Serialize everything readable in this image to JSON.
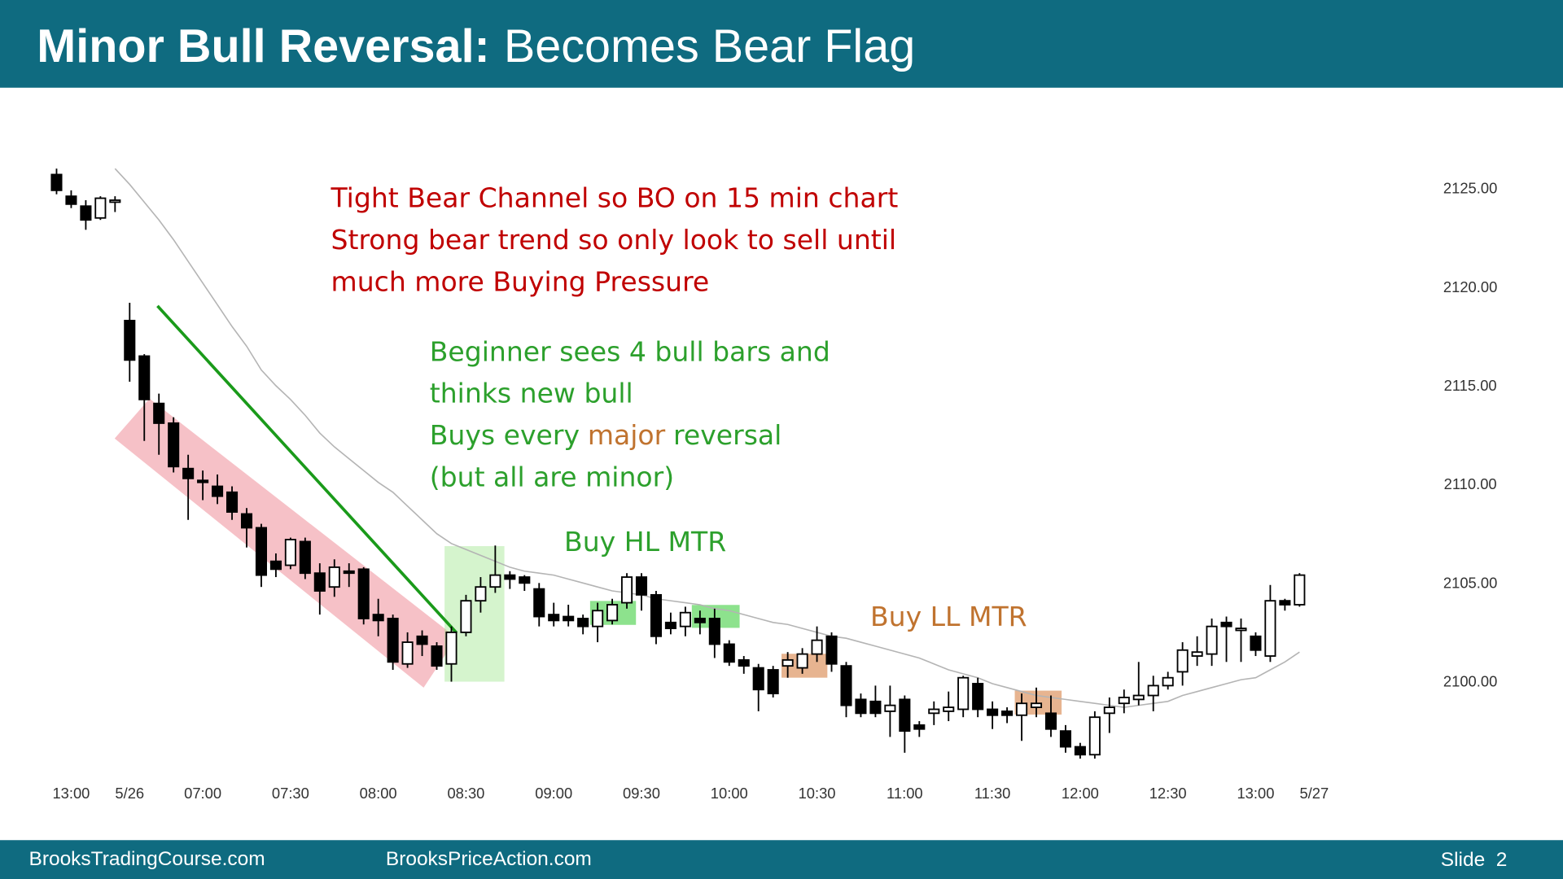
{
  "header": {
    "title_bold": "Minor Bull Reversal:",
    "title_rest": "Becomes Bear Flag"
  },
  "footer": {
    "left": "BrooksTradingCourse.com",
    "center": "BrooksPriceAction.com",
    "right": "Slide  2"
  },
  "chart_data": {
    "type": "candlestick",
    "up_color": "#ffffff",
    "down_color": "#000000",
    "categories": [
      null,
      "13:00",
      null,
      null,
      null,
      "5/26",
      null,
      null,
      null,
      null,
      "07:00",
      null,
      null,
      null,
      null,
      null,
      "07:30",
      null,
      null,
      null,
      null,
      null,
      "08:00",
      null,
      null,
      null,
      null,
      null,
      "08:30",
      null,
      null,
      null,
      null,
      null,
      "09:00",
      null,
      null,
      null,
      null,
      null,
      "09:30",
      null,
      null,
      null,
      null,
      null,
      "10:00",
      null,
      null,
      null,
      null,
      null,
      "10:30",
      null,
      null,
      null,
      null,
      null,
      "11:00",
      null,
      null,
      null,
      null,
      null,
      "11:30",
      null,
      null,
      null,
      null,
      null,
      "12:00",
      null,
      null,
      null,
      null,
      null,
      "12:30",
      null,
      null,
      null,
      null,
      null,
      "13:00",
      null,
      null,
      null,
      "5/27"
    ],
    "open": [
      2125.7,
      2124.6,
      2124.1,
      2123.5,
      2124.3,
      2118.3,
      2116.5,
      2114.1,
      2113.1,
      2110.8,
      2110.2,
      2109.9,
      2109.6,
      2108.5,
      2107.8,
      2106.1,
      2105.9,
      2107.1,
      2105.5,
      2104.8,
      2105.6,
      2105.7,
      2103.4,
      2103.2,
      2100.9,
      2102.3,
      2101.8,
      2100.9,
      2102.5,
      2104.1,
      2104.8,
      2105.4,
      2105.3,
      2104.7,
      2103.4,
      2103.3,
      2103.2,
      2102.8,
      2103.1,
      2104.0,
      2105.3,
      2104.4,
      2103.0,
      2102.8,
      2103.2,
      2103.2,
      2101.9,
      2101.1,
      2100.7,
      2100.6,
      2100.8,
      2100.7,
      2101.4,
      2102.3,
      2100.8,
      2099.1,
      2099.0,
      2098.5,
      2099.1,
      2097.8,
      2098.4,
      2098.5,
      2098.6,
      2099.9,
      2098.6,
      2098.5,
      2098.3,
      2098.7,
      2098.4,
      2097.5,
      2096.7,
      2096.3,
      2098.4,
      2098.9,
      2099.1,
      2099.3,
      2099.8,
      2100.5,
      2101.3,
      2101.4,
      2103.0,
      2102.6,
      2102.3,
      2101.3,
      2104.1,
      2103.9,
      null
    ],
    "high": [
      2126.0,
      2124.9,
      2124.4,
      2124.6,
      2124.6,
      2119.2,
      2116.6,
      2114.6,
      2113.4,
      2111.5,
      2110.7,
      2110.5,
      2109.9,
      2108.8,
      2108.0,
      2106.5,
      2107.3,
      2107.3,
      2106.0,
      2106.2,
      2106.0,
      2105.8,
      2104.2,
      2103.4,
      2102.5,
      2102.6,
      2102.0,
      2102.8,
      2104.4,
      2105.3,
      2106.9,
      2105.6,
      2105.4,
      2105.0,
      2104.0,
      2103.9,
      2103.4,
      2104.0,
      2104.2,
      2105.5,
      2105.5,
      2104.6,
      2103.5,
      2103.8,
      2103.6,
      2103.7,
      2102.1,
      2101.3,
      2100.9,
      2100.8,
      2101.5,
      2101.7,
      2102.8,
      2102.5,
      2101.0,
      2099.4,
      2099.8,
      2099.8,
      2099.3,
      2098.0,
      2099.0,
      2099.5,
      2100.3,
      2100.2,
      2099.0,
      2098.7,
      2099.4,
      2099.7,
      2099.3,
      2097.8,
      2096.9,
      2098.5,
      2099.2,
      2099.6,
      2101.0,
      2100.3,
      2100.5,
      2102.0,
      2102.3,
      2103.2,
      2103.3,
      2103.2,
      2102.5,
      2104.9,
      2104.2,
      2105.5,
      null
    ],
    "low": [
      2124.7,
      2124.0,
      2122.9,
      2123.4,
      2123.8,
      2115.2,
      2112.2,
      2111.5,
      2110.6,
      2108.2,
      2109.2,
      2109.0,
      2108.2,
      2106.8,
      2104.8,
      2105.3,
      2105.7,
      2105.2,
      2103.4,
      2104.3,
      2104.8,
      2102.9,
      2102.3,
      2100.6,
      2100.7,
      2101.3,
      2100.6,
      2100.0,
      2102.3,
      2103.5,
      2104.5,
      2104.7,
      2104.6,
      2102.8,
      2102.8,
      2102.8,
      2102.4,
      2102.0,
      2102.9,
      2103.7,
      2103.6,
      2101.9,
      2102.4,
      2102.3,
      2102.4,
      2101.2,
      2100.8,
      2100.4,
      2098.5,
      2099.2,
      2100.2,
      2100.4,
      2101.0,
      2100.5,
      2098.2,
      2098.2,
      2098.2,
      2097.2,
      2096.4,
      2097.2,
      2097.8,
      2098.0,
      2098.2,
      2098.2,
      2097.6,
      2097.9,
      2097.0,
      2098.2,
      2097.2,
      2096.4,
      2096.1,
      2096.1,
      2097.4,
      2098.4,
      2098.8,
      2098.5,
      2099.6,
      2099.8,
      2100.8,
      2100.8,
      2101.0,
      2101.0,
      2101.3,
      2101.0,
      2103.6,
      2103.8,
      null
    ],
    "close": [
      2124.9,
      2124.2,
      2123.4,
      2124.5,
      2124.4,
      2116.3,
      2114.3,
      2113.1,
      2110.9,
      2110.3,
      2110.1,
      2109.4,
      2108.6,
      2107.8,
      2105.4,
      2105.7,
      2107.2,
      2105.5,
      2104.6,
      2105.8,
      2105.5,
      2103.2,
      2103.1,
      2101.0,
      2102.0,
      2101.9,
      2100.8,
      2102.5,
      2104.1,
      2104.8,
      2105.4,
      2105.2,
      2105.0,
      2103.3,
      2103.1,
      2103.1,
      2102.8,
      2103.6,
      2103.9,
      2105.3,
      2104.4,
      2102.3,
      2102.7,
      2103.5,
      2103.0,
      2101.9,
      2101.0,
      2100.8,
      2099.6,
      2099.4,
      2101.1,
      2101.4,
      2102.1,
      2100.9,
      2098.8,
      2098.4,
      2098.4,
      2098.8,
      2097.5,
      2097.6,
      2098.6,
      2098.7,
      2100.2,
      2098.6,
      2098.3,
      2098.3,
      2098.9,
      2098.9,
      2097.6,
      2096.7,
      2096.3,
      2098.2,
      2098.7,
      2099.2,
      2099.3,
      2099.8,
      2100.2,
      2101.6,
      2101.5,
      2102.8,
      2102.8,
      2102.7,
      2101.6,
      2104.1,
      2103.9,
      2105.4,
      null
    ],
    "moving_average": {
      "color": "#b4b4b4",
      "values": [
        null,
        null,
        null,
        null,
        2126.0,
        2125.2,
        2124.3,
        2123.4,
        2122.4,
        2121.3,
        2120.2,
        2119.1,
        2118.0,
        2117.0,
        2115.8,
        2115.0,
        2114.3,
        2113.5,
        2112.6,
        2111.9,
        2111.3,
        2110.7,
        2110.1,
        2109.6,
        2108.9,
        2108.2,
        2107.5,
        2107.0,
        2106.7,
        2106.4,
        2106.1,
        2105.8,
        2105.6,
        2105.5,
        2105.4,
        2105.2,
        2105.0,
        2104.8,
        2104.6,
        2104.5,
        2104.4,
        2104.2,
        2104.1,
        2104.0,
        2103.9,
        2103.7,
        2103.6,
        2103.4,
        2103.2,
        2103.0,
        2102.9,
        2102.7,
        2102.5,
        2102.3,
        2102.2,
        2102.0,
        2101.8,
        2101.6,
        2101.4,
        2101.2,
        2100.9,
        2100.6,
        2100.4,
        2100.2,
        2099.9,
        2099.7,
        2099.5,
        2099.3,
        2099.2,
        2099.1,
        2099.0,
        2098.9,
        2098.8,
        2098.7,
        2098.8,
        2098.9,
        2099.0,
        2099.3,
        2099.5,
        2099.7,
        2099.9,
        2100.1,
        2100.2,
        2100.6,
        2101.0,
        2101.5,
        null
      ]
    },
    "ylim": [
      2095.5,
      2126.5
    ],
    "yticks": [
      {
        "value": 2100,
        "label": "2100.00"
      },
      {
        "value": 2105,
        "label": "2105.00"
      },
      {
        "value": 2110,
        "label": "2110.00"
      },
      {
        "value": 2115,
        "label": "2115.00"
      },
      {
        "value": 2120,
        "label": "2120.00"
      },
      {
        "value": 2125,
        "label": "2125.00"
      }
    ],
    "grid": false,
    "annotations": [
      {
        "text": "Tight Bear Channel so BO on 15 min chart",
        "color": "#c00000"
      },
      {
        "text": "Strong bear trend so only look to sell until",
        "color": "#c00000"
      },
      {
        "text": "much more Buying Pressure",
        "color": "#c00000"
      },
      {
        "text": "Beginner sees 4 bull bars and",
        "color": "#2ca02c"
      },
      {
        "text": "thinks new bull",
        "color": "#2ca02c"
      },
      {
        "text": "Buys every",
        "color": "#2ca02c"
      },
      {
        "text": "major",
        "color": "#c0732f"
      },
      {
        "text": "reversal",
        "color": "#2ca02c"
      },
      {
        "text": "(but all are minor)",
        "color": "#2ca02c"
      },
      {
        "text": "Buy HL MTR",
        "color": "#2ca02c"
      },
      {
        "text": "Buy LL MTR",
        "color": "#c0732f"
      }
    ]
  }
}
